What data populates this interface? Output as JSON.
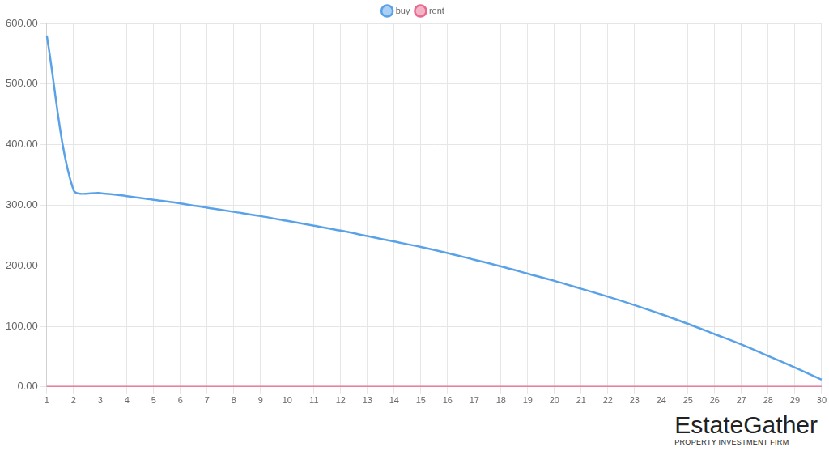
{
  "chart_data": {
    "type": "line",
    "categories": [
      "1",
      "2",
      "3",
      "4",
      "5",
      "6",
      "7",
      "8",
      "9",
      "10",
      "11",
      "12",
      "13",
      "14",
      "15",
      "16",
      "17",
      "18",
      "19",
      "20",
      "21",
      "22",
      "23",
      "24",
      "25",
      "26",
      "27",
      "28",
      "29",
      "30"
    ],
    "series": [
      {
        "name": "buy",
        "color": "#5aa2e8",
        "values": [
          580,
          325,
          320,
          315,
          309,
          303,
          296,
          289,
          282,
          274,
          266,
          258,
          249,
          240,
          231,
          221,
          210,
          199,
          187,
          175,
          162,
          149,
          135,
          120,
          104,
          87,
          70,
          51,
          32,
          12
        ]
      },
      {
        "name": "rent",
        "color": "#ea6a8f",
        "values": [
          0,
          0,
          0,
          0,
          0,
          0,
          0,
          0,
          0,
          0,
          0,
          0,
          0,
          0,
          0,
          0,
          0,
          0,
          0,
          0,
          0,
          0,
          0,
          0,
          0,
          0,
          0,
          0,
          0,
          0
        ]
      }
    ],
    "ylim": [
      0,
      600
    ],
    "yticks": [
      {
        "value": 0,
        "label": "0.00"
      },
      {
        "value": 100,
        "label": "100.00"
      },
      {
        "value": 200,
        "label": "200.00"
      },
      {
        "value": 300,
        "label": "300.00"
      },
      {
        "value": 400,
        "label": "400.00"
      },
      {
        "value": 500,
        "label": "500.00"
      },
      {
        "value": 600,
        "label": "600.00"
      }
    ],
    "grid": true,
    "legend": "top",
    "annotations": [
      "EstateGather",
      "PROPERTY INVESTMENT FIRM"
    ]
  }
}
